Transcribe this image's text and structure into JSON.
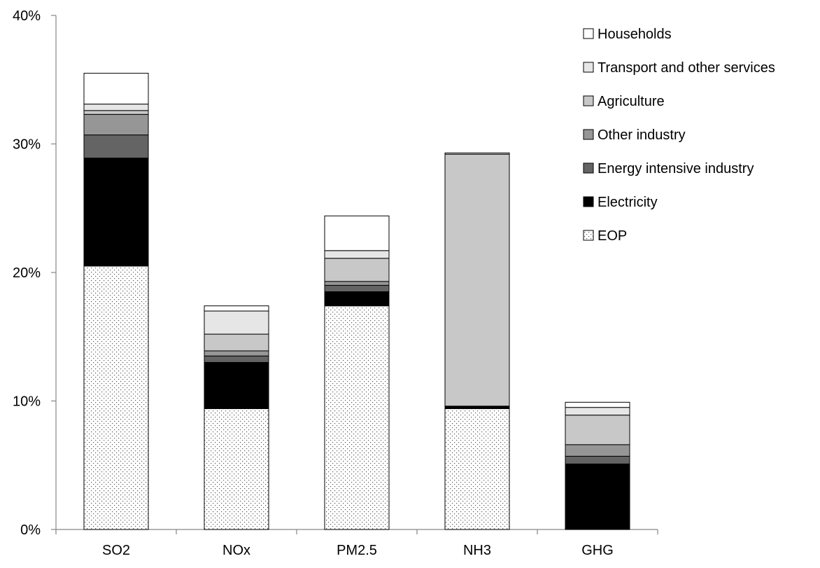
{
  "chart_data": {
    "type": "bar",
    "stacked": true,
    "title": "",
    "xlabel": "",
    "ylabel": "",
    "ylim": [
      0,
      40
    ],
    "y_ticks": [
      "0%",
      "10%",
      "20%",
      "30%",
      "40%"
    ],
    "y_tick_values": [
      0,
      10,
      20,
      30,
      40
    ],
    "grid": false,
    "legend_position": "right",
    "categories": [
      "SO2",
      "NOx",
      "PM2.5",
      "NH3",
      "GHG"
    ],
    "series": [
      {
        "name": "EOP",
        "pattern": "dots",
        "color": "#ffffff",
        "values": [
          20.5,
          9.4,
          17.4,
          9.4,
          0.0
        ]
      },
      {
        "name": "Electricity",
        "color": "#000000",
        "values": [
          8.4,
          3.6,
          1.1,
          0.2,
          5.1
        ]
      },
      {
        "name": "Energy intensive industry",
        "color": "#646464",
        "values": [
          1.8,
          0.5,
          0.5,
          0.0,
          0.6
        ]
      },
      {
        "name": "Other industry",
        "color": "#969696",
        "values": [
          1.6,
          0.4,
          0.3,
          0.0,
          0.9
        ]
      },
      {
        "name": "Agriculture",
        "color": "#c8c8c8",
        "values": [
          0.3,
          1.3,
          1.8,
          19.6,
          2.3
        ]
      },
      {
        "name": "Transport and other services",
        "color": "#e6e6e6",
        "values": [
          0.5,
          1.8,
          0.6,
          0.1,
          0.6
        ]
      },
      {
        "name": "Households",
        "color": "#ffffff",
        "values": [
          2.4,
          0.4,
          2.7,
          0.0,
          0.4
        ]
      }
    ],
    "legend_order": [
      "Households",
      "Transport and other services",
      "Agriculture",
      "Other industry",
      "Energy intensive industry",
      "Electricity",
      "EOP"
    ]
  }
}
